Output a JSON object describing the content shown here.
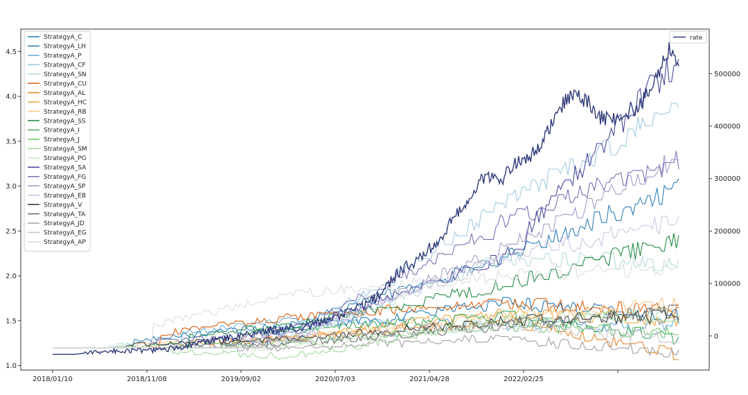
{
  "chart_data": {
    "type": "line",
    "x_dates": [
      "2018/01/10",
      "2018/11/08",
      "2019/09/02",
      "2020/07/03",
      "2021/04/28",
      "2022/02/25"
    ],
    "left_axis": {
      "ylim": [
        0.95,
        4.75
      ],
      "ticks": [
        1.0,
        1.5,
        2.0,
        2.5,
        3.0,
        3.5,
        4.0,
        4.5
      ]
    },
    "right_axis": {
      "ylim": [
        -65000,
        585000
      ],
      "ticks": [
        0,
        100000,
        200000,
        300000,
        400000,
        500000
      ]
    },
    "left_legend_position": "top-left",
    "right_legend_position": "top-right",
    "grid": false,
    "series": [
      {
        "name": "StrategyA_C",
        "color": "#1f77b4",
        "endpoints": [
          1.2,
          1.4,
          1.7,
          1.55
        ]
      },
      {
        "name": "StrategyA_LH",
        "color": "#2c7fb8",
        "endpoints": [
          1.2,
          1.45,
          2.2,
          3.0
        ]
      },
      {
        "name": "StrategyA_P",
        "color": "#6baed6",
        "endpoints": [
          1.2,
          1.5,
          1.45,
          1.45
        ]
      },
      {
        "name": "StrategyA_CF",
        "color": "#9ecae1",
        "endpoints": [
          1.2,
          1.3,
          2.8,
          3.9
        ]
      },
      {
        "name": "StrategyA_SN",
        "color": "#b3dcd8",
        "endpoints": [
          1.2,
          1.3,
          2.2,
          2.15
        ]
      },
      {
        "name": "StrategyA_CU",
        "color": "#d95f0e",
        "endpoints": [
          1.2,
          1.55,
          1.7,
          1.6
        ]
      },
      {
        "name": "StrategyA_AL",
        "color": "#e6862a",
        "endpoints": [
          1.2,
          1.3,
          1.5,
          1.12
        ]
      },
      {
        "name": "StrategyA_HC",
        "color": "#f0a74a",
        "endpoints": [
          1.2,
          1.3,
          1.6,
          1.5
        ]
      },
      {
        "name": "StrategyA_RB",
        "color": "#f7c98b",
        "endpoints": [
          1.2,
          1.3,
          1.55,
          1.7
        ]
      },
      {
        "name": "StrategyA_SS",
        "color": "#238b45",
        "endpoints": [
          1.2,
          1.45,
          1.9,
          2.4
        ]
      },
      {
        "name": "StrategyA_I",
        "color": "#41ab5d",
        "endpoints": [
          1.2,
          1.4,
          1.55,
          1.3
        ]
      },
      {
        "name": "StrategyA_J",
        "color": "#74c476",
        "endpoints": [
          1.2,
          1.25,
          1.45,
          1.35
        ]
      },
      {
        "name": "StrategyA_SM",
        "color": "#a1d99b",
        "endpoints": [
          1.2,
          1.1,
          1.5,
          1.55
        ]
      },
      {
        "name": "StrategyA_PG",
        "color": "#c7e9c0",
        "endpoints": [
          1.2,
          1.2,
          1.5,
          1.6
        ]
      },
      {
        "name": "StrategyA_SA",
        "color": "#4a4a9c",
        "endpoints": [
          1.2,
          1.4,
          2.2,
          4.45
        ]
      },
      {
        "name": "StrategyA_FG",
        "color": "#7b6fb0",
        "endpoints": [
          1.2,
          1.35,
          2.6,
          3.3
        ]
      },
      {
        "name": "StrategyA_SP",
        "color": "#a49cc9",
        "endpoints": [
          1.2,
          1.3,
          2.3,
          3.3
        ]
      },
      {
        "name": "StrategyA_EB",
        "color": "#c9c6e0",
        "endpoints": [
          1.2,
          1.3,
          2.2,
          2.6
        ]
      },
      {
        "name": "StrategyA_V",
        "color": "#3d3d3d",
        "endpoints": [
          1.2,
          1.3,
          1.5,
          1.55
        ]
      },
      {
        "name": "StrategyA_TA",
        "color": "#6e6e6e",
        "endpoints": [
          1.2,
          1.25,
          1.45,
          1.6
        ]
      },
      {
        "name": "StrategyA_JD",
        "color": "#a0a0a0",
        "endpoints": [
          1.2,
          1.2,
          1.3,
          1.15
        ]
      },
      {
        "name": "StrategyA_EG",
        "color": "#c6c6c6",
        "endpoints": [
          1.2,
          1.3,
          1.45,
          1.3
        ]
      },
      {
        "name": "StrategyA_AP",
        "color": "#dcdcdc",
        "endpoints": [
          1.2,
          1.8,
          2.0,
          2.1
        ]
      }
    ],
    "rate_series": {
      "name": "rate",
      "color": "#2e3a7a",
      "points": [
        [
          0.0,
          -35000
        ],
        [
          0.035,
          -35000
        ],
        [
          0.05,
          -33000
        ],
        [
          0.09,
          -29000
        ],
        [
          0.17,
          -27000
        ],
        [
          0.22,
          -18000
        ],
        [
          0.26,
          -8000
        ],
        [
          0.32,
          5000
        ],
        [
          0.36,
          12000
        ],
        [
          0.4,
          18000
        ],
        [
          0.44,
          28000
        ],
        [
          0.48,
          48000
        ],
        [
          0.52,
          75000
        ],
        [
          0.55,
          120000
        ],
        [
          0.59,
          150000
        ],
        [
          0.62,
          190000
        ],
        [
          0.66,
          255000
        ],
        [
          0.69,
          305000
        ],
        [
          0.72,
          302000
        ],
        [
          0.74,
          330000
        ],
        [
          0.76,
          340000
        ],
        [
          0.78,
          360000
        ],
        [
          0.805,
          430000
        ],
        [
          0.83,
          460000
        ],
        [
          0.855,
          445000
        ],
        [
          0.87,
          420000
        ],
        [
          0.89,
          410000
        ],
        [
          0.91,
          425000
        ],
        [
          0.94,
          440000
        ],
        [
          0.96,
          480000
        ],
        [
          0.985,
          550000
        ],
        [
          1.0,
          520000
        ]
      ]
    }
  }
}
